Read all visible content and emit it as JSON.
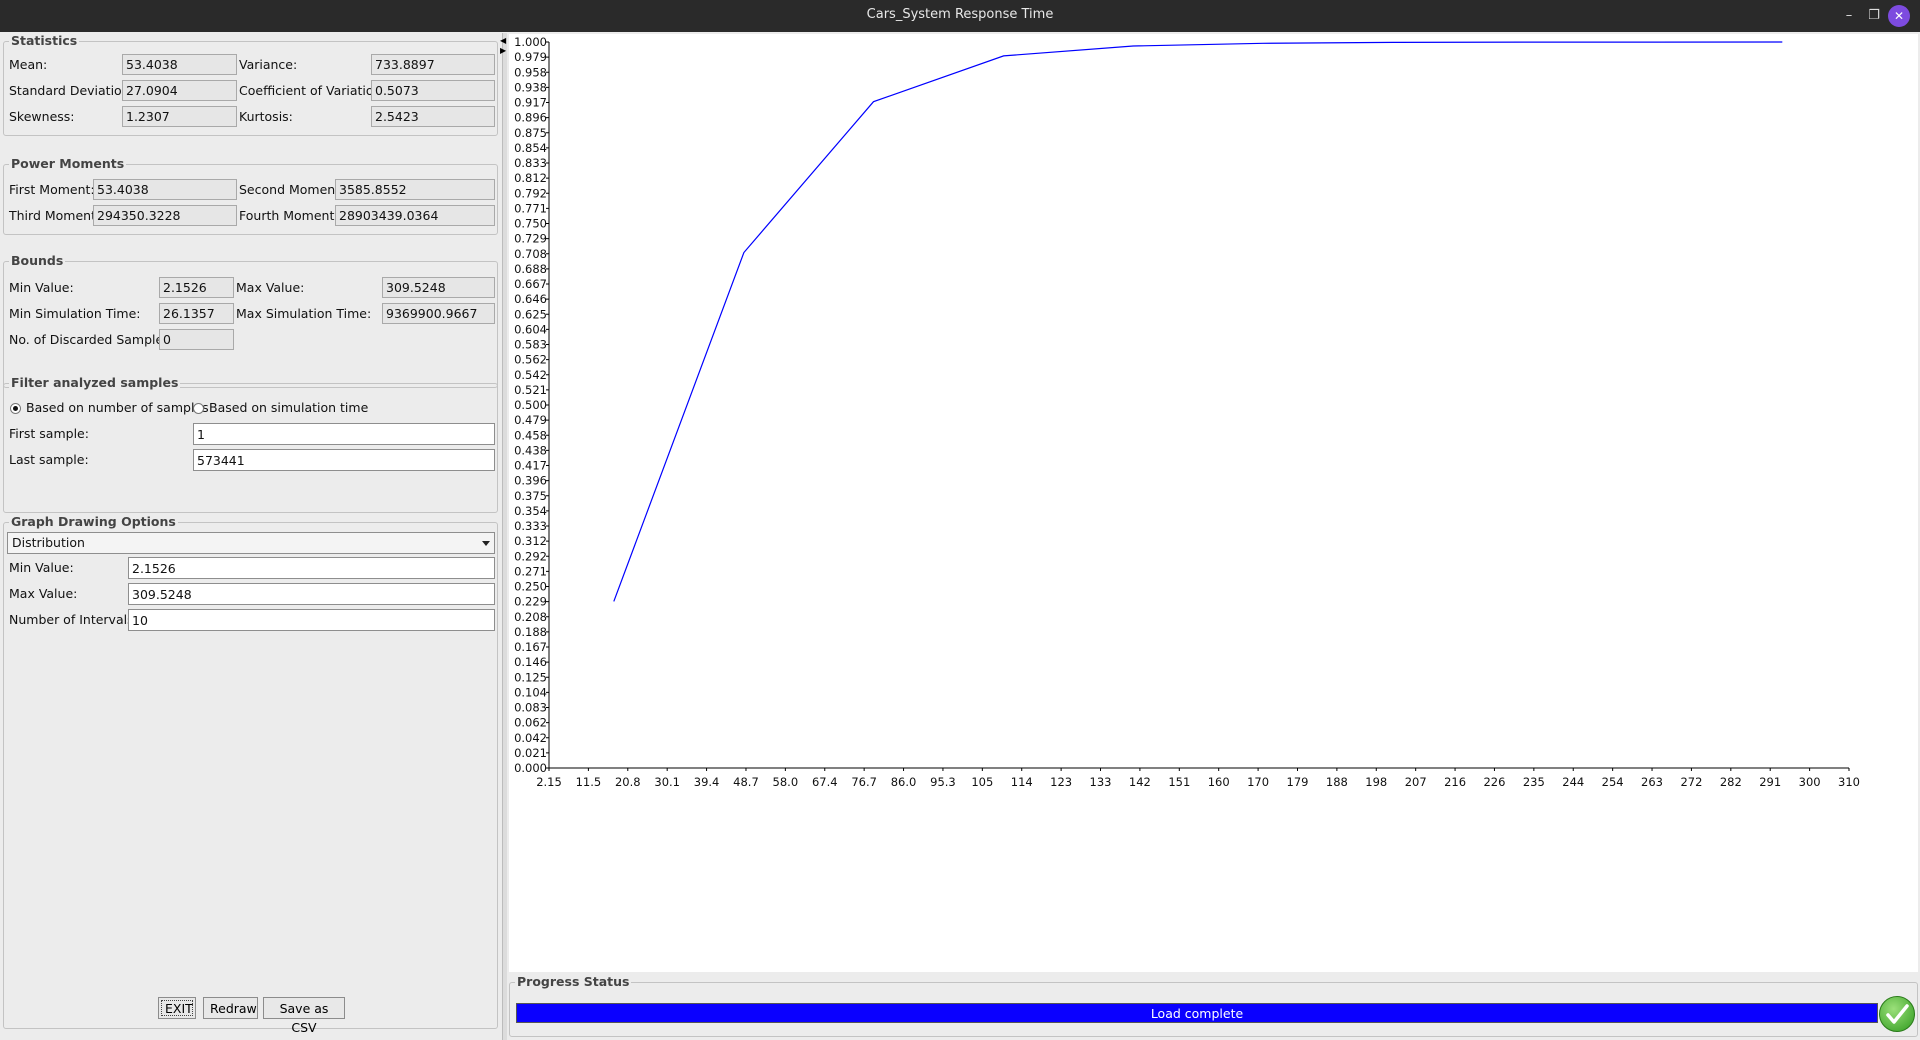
{
  "window": {
    "title": "Cars_System Response Time"
  },
  "statistics": {
    "title": "Statistics",
    "mean_label": "Mean:",
    "mean": "53.4038",
    "variance_label": "Variance:",
    "variance": "733.8897",
    "std_label": "Standard Deviation:",
    "std": "27.0904",
    "cov_label": "Coefficient of Variation:",
    "cov": "0.5073",
    "skew_label": "Skewness:",
    "skew": "1.2307",
    "kurt_label": "Kurtosis:",
    "kurt": "2.5423"
  },
  "power_moments": {
    "title": "Power Moments",
    "first_label": "First Moment:",
    "first": "53.4038",
    "second_label": "Second Moment:",
    "second": "3585.8552",
    "third_label": "Third Moment:",
    "third": "294350.3228",
    "fourth_label": "Fourth Moment:",
    "fourth": "28903439.0364"
  },
  "bounds": {
    "title": "Bounds",
    "min_label": "Min Value:",
    "min": "2.1526",
    "max_label": "Max Value:",
    "max": "309.5248",
    "min_sim_label": "Min Simulation Time:",
    "min_sim": "26.1357",
    "max_sim_label": "Max Simulation Time:",
    "max_sim": "9369900.9667",
    "discarded_label": "No. of Discarded Samples:",
    "discarded": "0"
  },
  "filter": {
    "title": "Filter analyzed samples",
    "radio_samples": "Based on number of samples",
    "radio_time": "Based on simulation time",
    "first_label": "First sample:",
    "first": "1",
    "last_label": "Last sample:",
    "last": "573441"
  },
  "graph_options": {
    "title": "Graph Drawing Options",
    "mode": "Distribution",
    "min_label": "Min Value:",
    "min": "2.1526",
    "max_label": "Max Value:",
    "max": "309.5248",
    "intervals_label": "Number of Intervals:",
    "intervals": "10"
  },
  "buttons": {
    "exit": "EXIT",
    "redraw": "Redraw",
    "save_csv": "Save as CSV"
  },
  "progress": {
    "title": "Progress Status",
    "text": "Load complete",
    "value": 1.0
  },
  "chart_data": {
    "type": "line",
    "x_ticks": [
      "2.15",
      "11.5",
      "20.8",
      "30.1",
      "39.4",
      "48.7",
      "58.0",
      "67.4",
      "76.7",
      "86.0",
      "95.3",
      "105",
      "114",
      "123",
      "133",
      "142",
      "151",
      "160",
      "170",
      "179",
      "188",
      "198",
      "207",
      "216",
      "226",
      "235",
      "244",
      "254",
      "263",
      "272",
      "282",
      "291",
      "300",
      "310"
    ],
    "y_ticks": [
      "0.000",
      "0.021",
      "0.042",
      "0.062",
      "0.083",
      "0.104",
      "0.125",
      "0.146",
      "0.167",
      "0.188",
      "0.208",
      "0.229",
      "0.250",
      "0.271",
      "0.292",
      "0.312",
      "0.333",
      "0.354",
      "0.375",
      "0.396",
      "0.417",
      "0.438",
      "0.458",
      "0.479",
      "0.500",
      "0.521",
      "0.542",
      "0.562",
      "0.583",
      "0.604",
      "0.625",
      "0.646",
      "0.667",
      "0.688",
      "0.708",
      "0.729",
      "0.750",
      "0.771",
      "0.792",
      "0.812",
      "0.833",
      "0.854",
      "0.875",
      "0.896",
      "0.917",
      "0.938",
      "0.958",
      "0.979",
      "1.000"
    ],
    "xlim": [
      2.15,
      310
    ],
    "ylim": [
      0,
      1
    ],
    "x": [
      17.5,
      48.3,
      79.0,
      109.8,
      140.5,
      171.2,
      202.0,
      232.8,
      263.5,
      294.2
    ],
    "y": [
      0.2295,
      0.7101,
      0.9177,
      0.9808,
      0.9945,
      0.9982,
      0.9994,
      0.9998,
      0.9999,
      1.0
    ],
    "color": "#0000ff",
    "grid": false
  }
}
